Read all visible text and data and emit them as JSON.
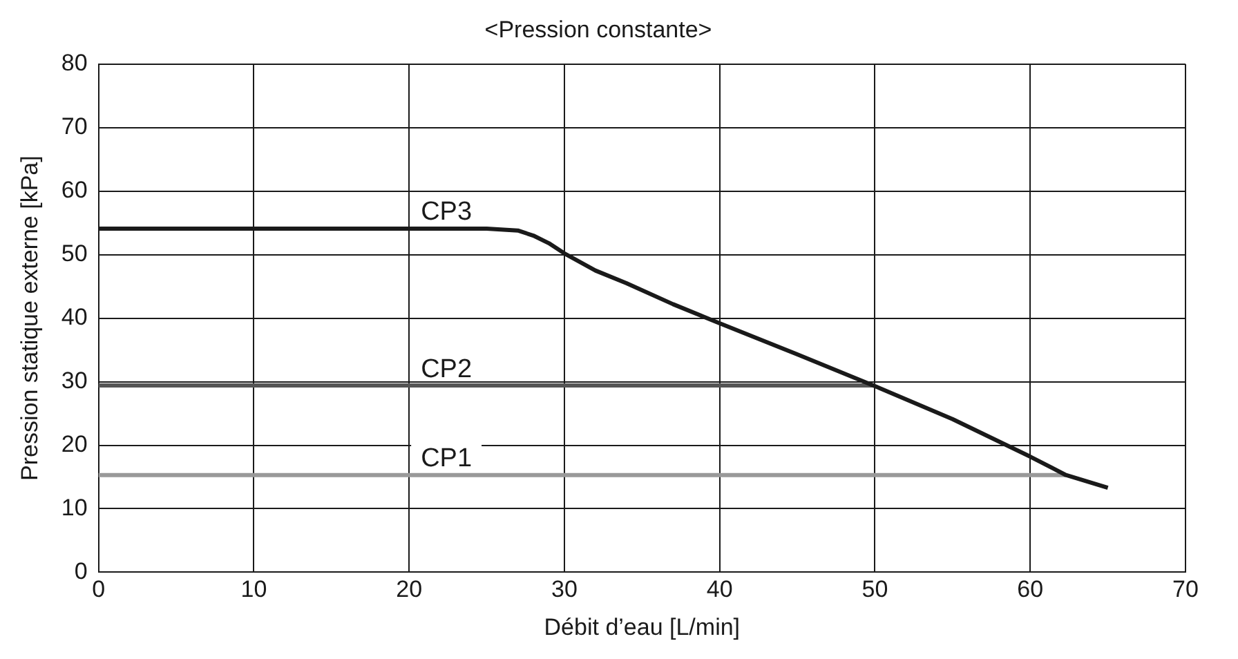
{
  "chart_data": {
    "type": "line",
    "title": "<Pression constante>",
    "xlabel": "Débit d’eau [L/min]",
    "ylabel": "Pression statique externe [kPa]",
    "xlim": [
      0,
      70
    ],
    "xticks": [
      0,
      10,
      20,
      30,
      40,
      50,
      60,
      70
    ],
    "ylim": [
      0,
      80
    ],
    "yticks": [
      0,
      10,
      20,
      30,
      40,
      50,
      60,
      70,
      80
    ],
    "grid": true,
    "legend": false,
    "marker": "none",
    "line_style": "solid",
    "series": [
      {
        "name": "CP3",
        "color": "#1a1a1a",
        "x": [
          0,
          25,
          27,
          28,
          29,
          30,
          32,
          34,
          37,
          40,
          45,
          50,
          55,
          60,
          62.3,
          65
        ],
        "values": [
          54.1,
          54.1,
          53.8,
          53,
          51.8,
          50.2,
          47.5,
          45.5,
          42.2,
          39.2,
          34.3,
          29.3,
          24.1,
          18.2,
          15.3,
          13.3
        ]
      },
      {
        "name": "CP2",
        "color": "#555555",
        "x": [
          0,
          50
        ],
        "values": [
          29.4,
          29.4
        ]
      },
      {
        "name": "CP1",
        "color": "#999999",
        "x": [
          0,
          62.3
        ],
        "values": [
          15.3,
          15.3
        ]
      }
    ]
  }
}
